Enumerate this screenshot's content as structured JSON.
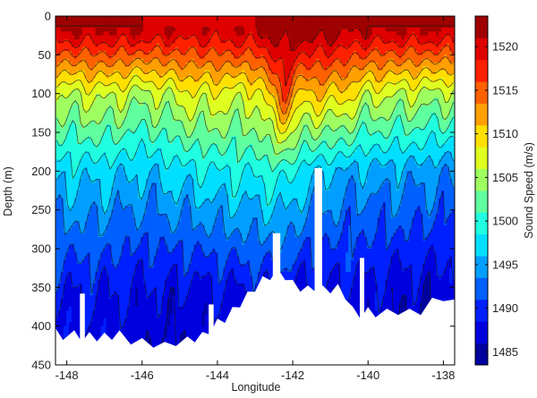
{
  "chart_data": {
    "type": "heatmap",
    "subtype": "filled-contour section",
    "title": "",
    "xlabel": "Longitude",
    "ylabel": "Depth (m)",
    "colorbar_label": "Sound Speed (m/s)",
    "colormap": "jet",
    "xlim": [
      -148.3,
      -137.7
    ],
    "ylim": [
      0,
      450
    ],
    "y_reversed": true,
    "x_ticks": [
      -148,
      -146,
      -144,
      -142,
      -140,
      -138
    ],
    "y_ticks": [
      0,
      50,
      100,
      150,
      200,
      250,
      300,
      350,
      400,
      450
    ],
    "clim": [
      1483.5,
      1523.5
    ],
    "colorbar_ticks": [
      1485,
      1490,
      1495,
      1500,
      1505,
      1510,
      1515,
      1520
    ],
    "contour_interval": 2.5,
    "mask_color": "#ffffff",
    "description_points": {
      "longitude": [
        -148.2,
        -147.0,
        -146.0,
        -144.6,
        -143.0,
        -142.2,
        -141.7,
        -141.0,
        -140.0,
        -139.0,
        -137.8
      ],
      "surface_speed": [
        1521,
        1521,
        1521,
        1520,
        1521,
        1523,
        1523,
        1522,
        1521,
        1521,
        1521
      ],
      "speed_at_100m": [
        1506,
        1507,
        1505,
        1508,
        1507,
        1516,
        1510,
        1511,
        1507,
        1506,
        1505
      ],
      "speed_at_200m": [
        1497,
        1497,
        1496,
        1498,
        1499,
        1500,
        1497,
        1496,
        1495,
        1495,
        1494
      ],
      "speed_at_350m": [
        1489,
        1489,
        1488,
        1488,
        1489,
        1489,
        1488,
        1488,
        1488,
        1487,
        1487
      ]
    },
    "bottom_depth": {
      "longitude": [
        -148.3,
        -148.1,
        -147.8,
        -147.6,
        -147.4,
        -147.2,
        -147.0,
        -146.8,
        -146.6,
        -146.3,
        -146.0,
        -145.7,
        -145.4,
        -145.1,
        -144.8,
        -144.6,
        -144.4,
        -144.2,
        -144.0,
        -143.8,
        -143.6,
        -143.4,
        -143.2,
        -143.0,
        -142.8,
        -142.6,
        -142.4,
        -142.2,
        -142.0,
        -141.8,
        -141.6,
        -141.4,
        -141.2,
        -141.0,
        -140.8,
        -140.6,
        -140.4,
        -140.2,
        -140.0,
        -139.8,
        -139.5,
        -139.2,
        -138.9,
        -138.6,
        -138.3,
        -138.0,
        -137.7
      ],
      "depth": [
        407,
        412,
        410,
        415,
        412,
        414,
        413,
        412,
        410,
        418,
        420,
        422,
        425,
        420,
        418,
        415,
        412,
        405,
        395,
        390,
        380,
        370,
        360,
        350,
        340,
        335,
        330,
        335,
        345,
        350,
        352,
        350,
        352,
        352,
        350,
        360,
        380,
        385,
        380,
        383,
        382,
        380,
        382,
        380,
        368,
        362,
        370
      ]
    },
    "seamounts": [
      {
        "longitude": [
          -147.65,
          -147.52
        ],
        "top_depth": 358
      },
      {
        "longitude": [
          -144.23,
          -144.1
        ],
        "top_depth": 372
      },
      {
        "longitude": [
          -142.53,
          -142.33
        ],
        "top_depth": 280
      },
      {
        "longitude": [
          -141.42,
          -141.22
        ],
        "top_depth": 196
      },
      {
        "longitude": [
          -140.22,
          -140.1
        ],
        "top_depth": 312
      }
    ]
  }
}
